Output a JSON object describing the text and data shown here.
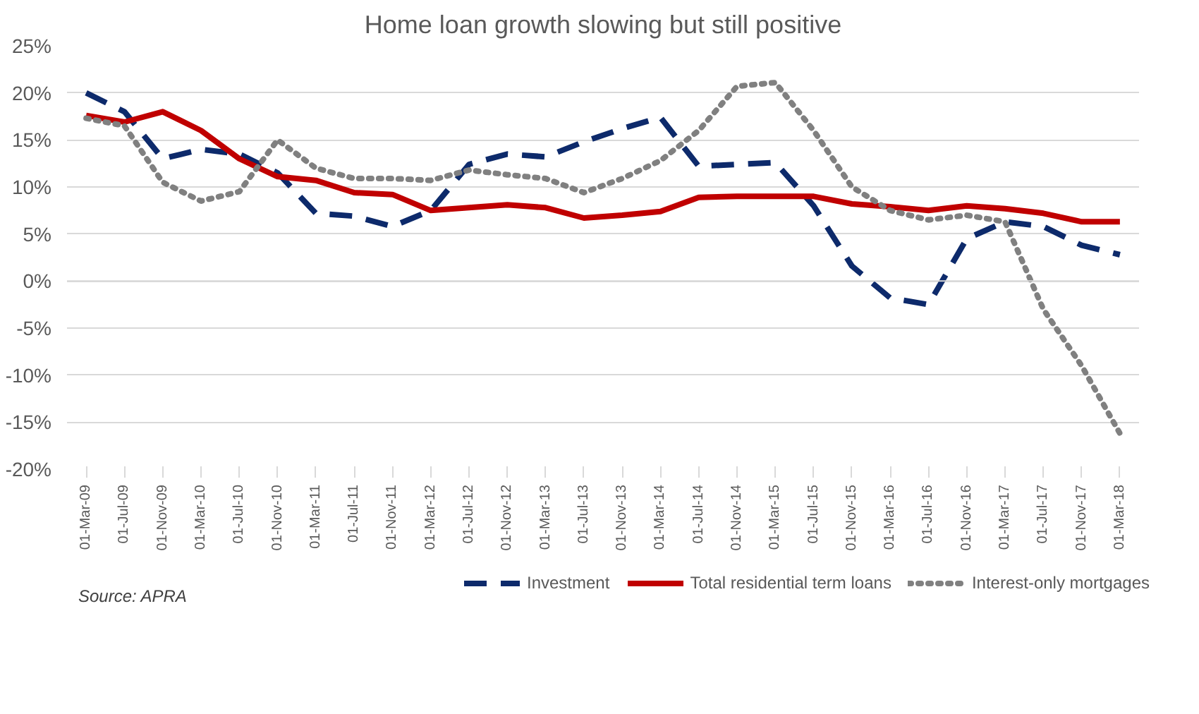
{
  "chart_data": {
    "type": "line",
    "title": "Home loan growth slowing but still positive",
    "categories": [
      "01-Mar-09",
      "01-Jul-09",
      "01-Nov-09",
      "01-Mar-10",
      "01-Jul-10",
      "01-Nov-10",
      "01-Mar-11",
      "01-Jul-11",
      "01-Nov-11",
      "01-Mar-12",
      "01-Jul-12",
      "01-Nov-12",
      "01-Mar-13",
      "01-Jul-13",
      "01-Nov-13",
      "01-Mar-14",
      "01-Jul-14",
      "01-Nov-14",
      "01-Mar-15",
      "01-Jul-15",
      "01-Nov-15",
      "01-Mar-16",
      "01-Jul-16",
      "01-Nov-16",
      "01-Mar-17",
      "01-Jul-17",
      "01-Nov-17",
      "01-Mar-18"
    ],
    "series": [
      {
        "name": "Investment",
        "color": "#0d2a6b",
        "line_style": "dashed",
        "values": [
          20,
          18,
          13,
          14,
          13.5,
          11.5,
          7.2,
          6.9,
          5.8,
          7.5,
          12.4,
          13.5,
          13.2,
          14.8,
          16.2,
          17.4,
          12.2,
          12.4,
          12.6,
          8,
          1.6,
          -1.8,
          -2.5,
          4.5,
          6.3,
          5.8,
          3.8,
          2.8
        ]
      },
      {
        "name": "Total residential term loans",
        "color": "#c00000",
        "line_style": "solid",
        "values": [
          17.6,
          16.9,
          18,
          16,
          13,
          11.1,
          10.7,
          9.4,
          9.2,
          7.5,
          7.8,
          8.1,
          7.8,
          6.7,
          7,
          7.4,
          8.9,
          9,
          9,
          9,
          8.2,
          7.9,
          7.5,
          8,
          7.7,
          7.2,
          6.3,
          6.3
        ]
      },
      {
        "name": "Interest-only mortgages",
        "color": "#808080",
        "line_style": "dotted",
        "values": [
          17.3,
          16.5,
          10.5,
          8.5,
          9.5,
          15,
          12,
          10.9,
          10.9,
          10.7,
          11.8,
          11.3,
          10.9,
          9.4,
          10.9,
          12.8,
          16,
          20.7,
          21.1,
          16,
          10,
          7.5,
          6.5,
          7,
          6.3,
          -3,
          -9,
          -16.2
        ]
      }
    ],
    "ylim": [
      -20,
      25
    ],
    "yticks": [
      {
        "value": -20,
        "label": "-20%"
      },
      {
        "value": -15,
        "label": "-15%"
      },
      {
        "value": -10,
        "label": "-10%"
      },
      {
        "value": -5,
        "label": "-5%"
      },
      {
        "value": 0,
        "label": "0%"
      },
      {
        "value": 5,
        "label": "5%"
      },
      {
        "value": 10,
        "label": "10%"
      },
      {
        "value": 15,
        "label": "15%"
      },
      {
        "value": 20,
        "label": "20%"
      },
      {
        "value": 25,
        "label": "25%"
      }
    ],
    "grid": "y",
    "legend": "bottom",
    "marker": "none",
    "annotations": [
      "Source: APRA"
    ]
  }
}
